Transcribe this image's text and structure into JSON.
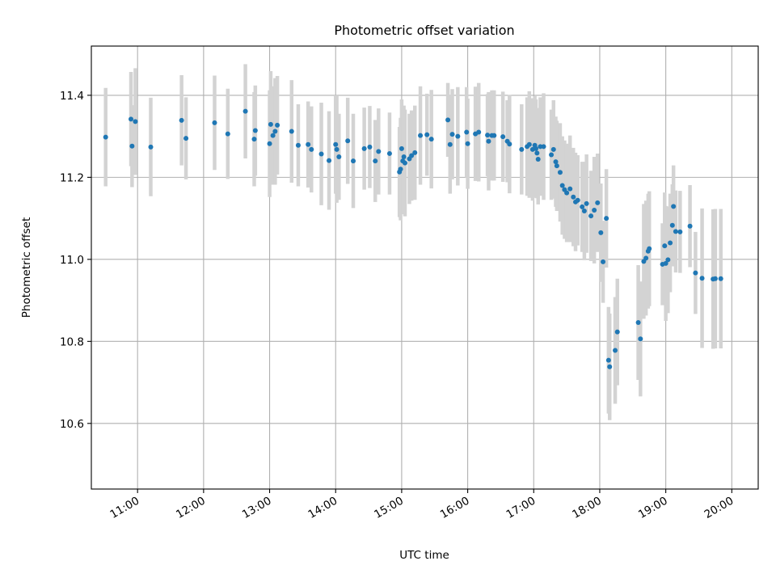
{
  "chart_data": {
    "type": "scatter",
    "title": "Photometric offset variation",
    "xlabel": "UTC time",
    "ylabel": "Photometric offset",
    "xlim": [
      "10:18",
      "20:24"
    ],
    "ylim": [
      10.44,
      11.52
    ],
    "grid": true,
    "x_ticks": [
      "11:00",
      "12:00",
      "13:00",
      "14:00",
      "15:00",
      "16:00",
      "17:00",
      "18:00",
      "19:00",
      "20:00"
    ],
    "y_ticks": [
      10.6,
      10.8,
      11.0,
      11.2,
      11.4
    ],
    "colors": {
      "point": "#1f77b4",
      "errorbar": "#d3d3d3"
    },
    "series": [
      {
        "x": [
          "10:31",
          "10:54",
          "10:55",
          "10:58",
          "11:12",
          "11:40",
          "11:44",
          "12:10",
          "12:22",
          "12:38",
          "12:46",
          "12:47",
          "13:00",
          "13:01",
          "13:03",
          "13:05",
          "13:07",
          "13:20",
          "13:26",
          "13:35",
          "13:38",
          "13:47",
          "13:54",
          "14:00",
          "14:01",
          "14:03",
          "14:11",
          "14:16",
          "14:26",
          "14:31",
          "14:36",
          "14:39",
          "14:49",
          "14:58",
          "14:59",
          "15:00",
          "15:01",
          "15:02",
          "15:03",
          "15:07",
          "15:09",
          "15:12",
          "15:17",
          "15:23",
          "15:27",
          "15:42",
          "15:44",
          "15:46",
          "15:51",
          "15:59",
          "16:00",
          "16:07",
          "16:10",
          "16:18",
          "16:19",
          "16:22",
          "16:24",
          "16:32",
          "16:36",
          "16:38",
          "16:49",
          "16:54",
          "16:56",
          "16:59",
          "17:01",
          "17:02",
          "17:03",
          "17:04",
          "17:06",
          "17:09",
          "17:16",
          "17:18",
          "17:20",
          "17:21",
          "17:24",
          "17:26",
          "17:28",
          "17:30",
          "17:33",
          "17:36",
          "17:38",
          "17:40",
          "17:44",
          "17:46",
          "17:48",
          "17:52",
          "17:55",
          "17:58",
          "18:01",
          "18:03",
          "18:06",
          "18:08",
          "18:09",
          "18:14",
          "18:16",
          "18:35",
          "18:37",
          "18:40",
          "18:42",
          "18:44",
          "18:45",
          "18:57",
          "18:59",
          "19:00",
          "19:02",
          "19:04",
          "19:06",
          "19:07",
          "19:09",
          "19:13",
          "19:22",
          "19:27",
          "19:33",
          "19:43",
          "19:45",
          "19:50"
        ],
        "y": [
          11.298,
          11.342,
          11.276,
          11.336,
          11.274,
          11.339,
          11.295,
          11.333,
          11.306,
          11.361,
          11.293,
          11.314,
          11.282,
          11.329,
          11.302,
          11.312,
          11.327,
          11.312,
          11.278,
          11.28,
          11.268,
          11.257,
          11.241,
          11.28,
          11.268,
          11.25,
          11.289,
          11.24,
          11.27,
          11.274,
          11.24,
          11.263,
          11.258,
          11.213,
          11.22,
          11.27,
          11.24,
          11.25,
          11.235,
          11.245,
          11.253,
          11.26,
          11.302,
          11.304,
          11.293,
          11.34,
          11.28,
          11.305,
          11.3,
          11.31,
          11.282,
          11.306,
          11.31,
          11.303,
          11.288,
          11.302,
          11.302,
          11.299,
          11.288,
          11.281,
          11.268,
          11.275,
          11.28,
          11.268,
          11.278,
          11.27,
          11.259,
          11.244,
          11.275,
          11.275,
          11.255,
          11.268,
          11.238,
          11.228,
          11.212,
          11.18,
          11.17,
          11.162,
          11.172,
          11.152,
          11.14,
          11.144,
          11.128,
          11.118,
          11.136,
          11.106,
          11.12,
          11.138,
          11.065,
          10.994,
          11.1,
          10.754,
          10.738,
          10.778,
          10.823,
          10.846,
          10.806,
          10.995,
          11.003,
          11.02,
          11.026,
          10.988,
          11.033,
          10.99,
          10.999,
          11.04,
          11.083,
          11.129,
          11.068,
          11.067,
          11.081,
          10.967,
          10.954,
          10.952,
          10.953,
          10.953
        ],
        "err": [
          0.12,
          0.115,
          0.1,
          0.13,
          0.12,
          0.11,
          0.1,
          0.115,
          0.11,
          0.115,
          0.115,
          0.11,
          0.13,
          0.13,
          0.12,
          0.13,
          0.12,
          0.125,
          0.1,
          0.105,
          0.105,
          0.125,
          0.12,
          0.12,
          0.13,
          0.105,
          0.105,
          0.115,
          0.1,
          0.1,
          0.1,
          0.105,
          0.1,
          0.11,
          0.125,
          0.12,
          0.13,
          0.125,
          0.13,
          0.11,
          0.11,
          0.115,
          0.12,
          0.1,
          0.12,
          0.09,
          0.12,
          0.11,
          0.12,
          0.11,
          0.11,
          0.115,
          0.12,
          0.1,
          0.12,
          0.11,
          0.11,
          0.11,
          0.1,
          0.12,
          0.11,
          0.12,
          0.13,
          0.125,
          0.12,
          0.12,
          0.11,
          0.11,
          0.12,
          0.13,
          0.11,
          0.12,
          0.11,
          0.11,
          0.12,
          0.12,
          0.12,
          0.12,
          0.13,
          0.12,
          0.12,
          0.11,
          0.11,
          0.12,
          0.12,
          0.11,
          0.13,
          0.12,
          0.12,
          0.1,
          0.12,
          0.13,
          0.13,
          0.13,
          0.13,
          0.14,
          0.14,
          0.14,
          0.14,
          0.14,
          0.14,
          0.1,
          0.13,
          0.14,
          0.13,
          0.12,
          0.1,
          0.1,
          0.1,
          0.1,
          0.1,
          0.1,
          0.17,
          0.17,
          0.17,
          0.17
        ]
      }
    ]
  }
}
